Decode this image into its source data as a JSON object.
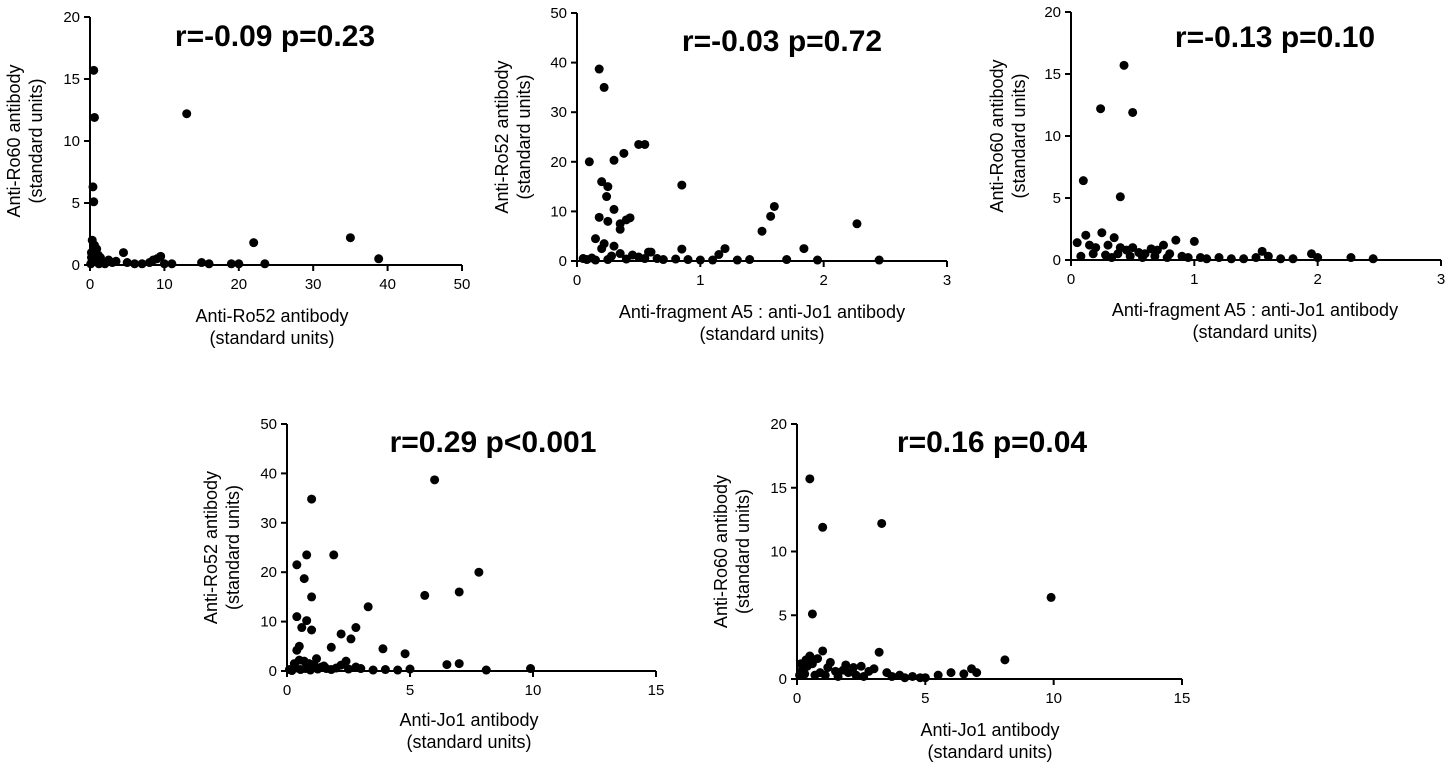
{
  "chart_data": [
    {
      "type": "scatter",
      "annotation": "r=-0.09 p=0.23",
      "xlabel": [
        "Anti-Ro52 antibody",
        "(standard units)"
      ],
      "ylabel": [
        "Anti-Ro60 antibody",
        "(standard units)"
      ],
      "xlim": [
        0,
        50
      ],
      "ylim": [
        0,
        20
      ],
      "xticks": [
        0,
        10,
        20,
        30,
        40,
        50
      ],
      "yticks": [
        0,
        5,
        10,
        15,
        20
      ],
      "points": [
        [
          0.5,
          15.7
        ],
        [
          0.6,
          11.9
        ],
        [
          0.4,
          6.3
        ],
        [
          0.5,
          5.1
        ],
        [
          13,
          12.2
        ],
        [
          35,
          2.2
        ],
        [
          38.8,
          0.5
        ],
        [
          22,
          1.8
        ],
        [
          0.3,
          2.0
        ],
        [
          0.6,
          1.6
        ],
        [
          0.9,
          1.3
        ],
        [
          1.1,
          0.8
        ],
        [
          0.2,
          0.6
        ],
        [
          0.8,
          0.4
        ],
        [
          1.5,
          0.2
        ],
        [
          2,
          0.1
        ],
        [
          0.1,
          0.1
        ],
        [
          0.4,
          0.3
        ],
        [
          1.2,
          0.1
        ],
        [
          2.5,
          0.4
        ],
        [
          3.5,
          0.3
        ],
        [
          4.5,
          1.0
        ],
        [
          5,
          0.2
        ],
        [
          6,
          0.1
        ],
        [
          7,
          0.1
        ],
        [
          8,
          0.2
        ],
        [
          9,
          0.5
        ],
        [
          9.5,
          0.7
        ],
        [
          10,
          0.1
        ],
        [
          11,
          0.1
        ],
        [
          15,
          0.2
        ],
        [
          16,
          0.1
        ],
        [
          19,
          0.1
        ],
        [
          20,
          0.1
        ],
        [
          23.5,
          0.1
        ],
        [
          0.2,
          1.0
        ],
        [
          0.7,
          0.9
        ],
        [
          1.4,
          0.6
        ],
        [
          3,
          0.2
        ],
        [
          8.5,
          0.4
        ]
      ]
    },
    {
      "type": "scatter",
      "annotation": "r=-0.03 p=0.72",
      "xlabel": [
        "Anti-fragment A5 : anti-Jo1 antibody",
        "(standard units)"
      ],
      "ylabel": [
        "Anti-Ro52 antibody",
        "(standard units)"
      ],
      "xlim": [
        0,
        3
      ],
      "ylim": [
        0,
        50
      ],
      "xticks": [
        0,
        1,
        2,
        3
      ],
      "yticks": [
        0,
        10,
        20,
        30,
        40,
        50
      ],
      "points": [
        [
          0.18,
          38.7
        ],
        [
          0.22,
          35
        ],
        [
          0.1,
          20
        ],
        [
          0.5,
          23.5
        ],
        [
          0.55,
          23.5
        ],
        [
          0.38,
          21.7
        ],
        [
          0.3,
          20.3
        ],
        [
          0.2,
          16
        ],
        [
          0.25,
          15
        ],
        [
          0.24,
          13
        ],
        [
          0.3,
          10.4
        ],
        [
          0.35,
          7.5
        ],
        [
          0.35,
          6.4
        ],
        [
          0.4,
          8.3
        ],
        [
          0.43,
          8.7
        ],
        [
          0.18,
          8.8
        ],
        [
          0.25,
          8
        ],
        [
          0.15,
          4.5
        ],
        [
          0.2,
          2.5
        ],
        [
          0.85,
          15.3
        ],
        [
          1.6,
          11
        ],
        [
          1.57,
          9
        ],
        [
          1.5,
          6
        ],
        [
          2.27,
          7.5
        ],
        [
          1.84,
          2.5
        ],
        [
          1.2,
          2.5
        ],
        [
          0.22,
          3.5
        ],
        [
          0.3,
          3
        ],
        [
          0.35,
          1.5
        ],
        [
          0.45,
          1.2
        ],
        [
          0.5,
          0.8
        ],
        [
          0.6,
          1.8
        ],
        [
          0.65,
          0.5
        ],
        [
          0.8,
          0.4
        ],
        [
          0.9,
          0.3
        ],
        [
          1.0,
          0.2
        ],
        [
          1.1,
          0.2
        ],
        [
          1.3,
          0.2
        ],
        [
          1.4,
          0.3
        ],
        [
          1.7,
          0.3
        ],
        [
          1.95,
          0.2
        ],
        [
          2.45,
          0.2
        ],
        [
          0.05,
          0.5
        ],
        [
          0.08,
          0.3
        ],
        [
          0.12,
          0.6
        ],
        [
          0.15,
          0.2
        ],
        [
          0.25,
          0.3
        ],
        [
          0.28,
          1.0
        ],
        [
          0.4,
          0.4
        ],
        [
          0.55,
          0.5
        ],
        [
          0.7,
          0.3
        ],
        [
          0.85,
          2.4
        ],
        [
          1.15,
          1.3
        ],
        [
          0.58,
          1.8
        ]
      ]
    },
    {
      "type": "scatter",
      "annotation": "r=-0.13 p=0.10",
      "xlabel": [
        "Anti-fragment A5 : anti-Jo1 antibody",
        "(standard units)"
      ],
      "ylabel": [
        "Anti-Ro60 antibody",
        "(standard units)"
      ],
      "xlim": [
        0,
        3
      ],
      "ylim": [
        0,
        20
      ],
      "xticks": [
        0,
        1,
        2,
        3
      ],
      "yticks": [
        0,
        5,
        10,
        15,
        20
      ],
      "points": [
        [
          0.43,
          15.7
        ],
        [
          0.24,
          12.2
        ],
        [
          0.5,
          11.9
        ],
        [
          0.1,
          6.4
        ],
        [
          0.4,
          5.1
        ],
        [
          0.12,
          2.0
        ],
        [
          0.25,
          2.2
        ],
        [
          0.35,
          1.8
        ],
        [
          0.05,
          1.4
        ],
        [
          0.15,
          1.2
        ],
        [
          0.2,
          1.0
        ],
        [
          0.3,
          1.2
        ],
        [
          0.4,
          1.0
        ],
        [
          0.45,
          0.8
        ],
        [
          0.5,
          1.0
        ],
        [
          0.55,
          0.6
        ],
        [
          0.6,
          0.5
        ],
        [
          0.65,
          0.9
        ],
        [
          0.7,
          0.8
        ],
        [
          0.75,
          1.2
        ],
        [
          0.8,
          0.5
        ],
        [
          0.85,
          1.6
        ],
        [
          0.9,
          0.3
        ],
        [
          0.95,
          0.2
        ],
        [
          1.0,
          1.5
        ],
        [
          1.05,
          0.2
        ],
        [
          1.1,
          0.1
        ],
        [
          1.2,
          0.2
        ],
        [
          1.3,
          0.1
        ],
        [
          1.4,
          0.1
        ],
        [
          1.5,
          0.2
        ],
        [
          1.55,
          0.7
        ],
        [
          1.6,
          0.3
        ],
        [
          1.7,
          0.1
        ],
        [
          1.8,
          0.1
        ],
        [
          1.95,
          0.5
        ],
        [
          2.0,
          0.2
        ],
        [
          2.27,
          0.2
        ],
        [
          2.45,
          0.1
        ],
        [
          0.08,
          0.3
        ],
        [
          0.18,
          0.5
        ],
        [
          0.28,
          0.4
        ],
        [
          0.33,
          0.2
        ],
        [
          0.38,
          0.5
        ],
        [
          0.48,
          0.3
        ],
        [
          0.58,
          0.2
        ],
        [
          0.68,
          0.3
        ],
        [
          0.78,
          0.2
        ]
      ]
    },
    {
      "type": "scatter",
      "annotation": "r=0.29 p<0.001",
      "xlabel": [
        "Anti-Jo1 antibody",
        "(standard units)"
      ],
      "ylabel": [
        "Anti-Ro52 antibody",
        "(standard units)"
      ],
      "xlim": [
        0,
        15
      ],
      "ylim": [
        0,
        50
      ],
      "xticks": [
        0,
        5,
        10,
        15
      ],
      "yticks": [
        0,
        10,
        20,
        30,
        40,
        50
      ],
      "points": [
        [
          6.0,
          38.7
        ],
        [
          1.0,
          34.8
        ],
        [
          0.8,
          23.5
        ],
        [
          1.9,
          23.5
        ],
        [
          0.4,
          21.5
        ],
        [
          7.8,
          20
        ],
        [
          0.7,
          18.7
        ],
        [
          7.0,
          16
        ],
        [
          5.6,
          15.3
        ],
        [
          1.0,
          15
        ],
        [
          3.3,
          13
        ],
        [
          0.4,
          11
        ],
        [
          0.8,
          10.2
        ],
        [
          0.6,
          8.8
        ],
        [
          1.0,
          8.3
        ],
        [
          2.8,
          8.8
        ],
        [
          2.2,
          7.5
        ],
        [
          2.6,
          6.5
        ],
        [
          3.9,
          4.5
        ],
        [
          4.8,
          3.5
        ],
        [
          0.5,
          5
        ],
        [
          0.4,
          4.2
        ],
        [
          1.8,
          4.8
        ],
        [
          1.2,
          2.5
        ],
        [
          2.4,
          2.0
        ],
        [
          0.3,
          1.5
        ],
        [
          0.5,
          2.2
        ],
        [
          0.7,
          2.0
        ],
        [
          0.9,
          1.5
        ],
        [
          1.1,
          1.2
        ],
        [
          1.4,
          0.8
        ],
        [
          1.6,
          0.5
        ],
        [
          1.8,
          0.3
        ],
        [
          2.0,
          0.6
        ],
        [
          2.5,
          0.4
        ],
        [
          3.0,
          0.5
        ],
        [
          3.5,
          0.2
        ],
        [
          4.0,
          0.3
        ],
        [
          4.5,
          0.2
        ],
        [
          5.0,
          0.4
        ],
        [
          6.5,
          1.3
        ],
        [
          7.0,
          1.5
        ],
        [
          8.1,
          0.2
        ],
        [
          9.9,
          0.5
        ],
        [
          0.1,
          0.3
        ],
        [
          0.2,
          0.1
        ],
        [
          0.35,
          0.6
        ],
        [
          0.55,
          0.3
        ],
        [
          0.75,
          0.5
        ],
        [
          0.95,
          0.2
        ],
        [
          1.25,
          0.4
        ],
        [
          1.5,
          1.0
        ],
        [
          2.2,
          1.2
        ],
        [
          2.8,
          0.8
        ]
      ]
    },
    {
      "type": "scatter",
      "annotation": "r=0.16 p=0.04",
      "xlabel": [
        "Anti-Jo1 antibody",
        "(standard units)"
      ],
      "ylabel": [
        "Anti-Ro60 antibody",
        "(standard units)"
      ],
      "xlim": [
        0,
        15
      ],
      "ylim": [
        0,
        20
      ],
      "xticks": [
        0,
        5,
        10,
        15
      ],
      "yticks": [
        0,
        5,
        10,
        15,
        20
      ],
      "points": [
        [
          0.5,
          15.7
        ],
        [
          3.3,
          12.2
        ],
        [
          1.0,
          11.9
        ],
        [
          9.9,
          6.4
        ],
        [
          0.6,
          5.1
        ],
        [
          8.1,
          1.5
        ],
        [
          6.8,
          0.8
        ],
        [
          7.0,
          0.5
        ],
        [
          6.0,
          0.5
        ],
        [
          6.5,
          0.4
        ],
        [
          5.0,
          0.1
        ],
        [
          5.5,
          0.3
        ],
        [
          4.0,
          0.3
        ],
        [
          4.5,
          0.2
        ],
        [
          3.0,
          0.8
        ],
        [
          3.5,
          0.5
        ],
        [
          2.8,
          0.6
        ],
        [
          2.5,
          1.0
        ],
        [
          2.2,
          0.9
        ],
        [
          2.0,
          0.5
        ],
        [
          1.8,
          0.7
        ],
        [
          1.5,
          0.6
        ],
        [
          1.2,
          0.9
        ],
        [
          1.0,
          2.2
        ],
        [
          0.8,
          1.6
        ],
        [
          0.6,
          1.2
        ],
        [
          0.4,
          1.0
        ],
        [
          0.2,
          0.7
        ],
        [
          0.1,
          0.3
        ],
        [
          0.3,
          0.4
        ],
        [
          0.5,
          1.8
        ],
        [
          0.7,
          0.3
        ],
        [
          0.9,
          0.5
        ],
        [
          1.1,
          0.3
        ],
        [
          1.3,
          1.3
        ],
        [
          1.6,
          0.2
        ],
        [
          1.9,
          1.1
        ],
        [
          2.3,
          0.3
        ],
        [
          2.6,
          0.2
        ],
        [
          3.2,
          2.1
        ],
        [
          3.7,
          0.2
        ],
        [
          4.2,
          0.1
        ],
        [
          4.8,
          0.1
        ],
        [
          0.35,
          1.5
        ],
        [
          0.15,
          1.2
        ]
      ]
    }
  ]
}
